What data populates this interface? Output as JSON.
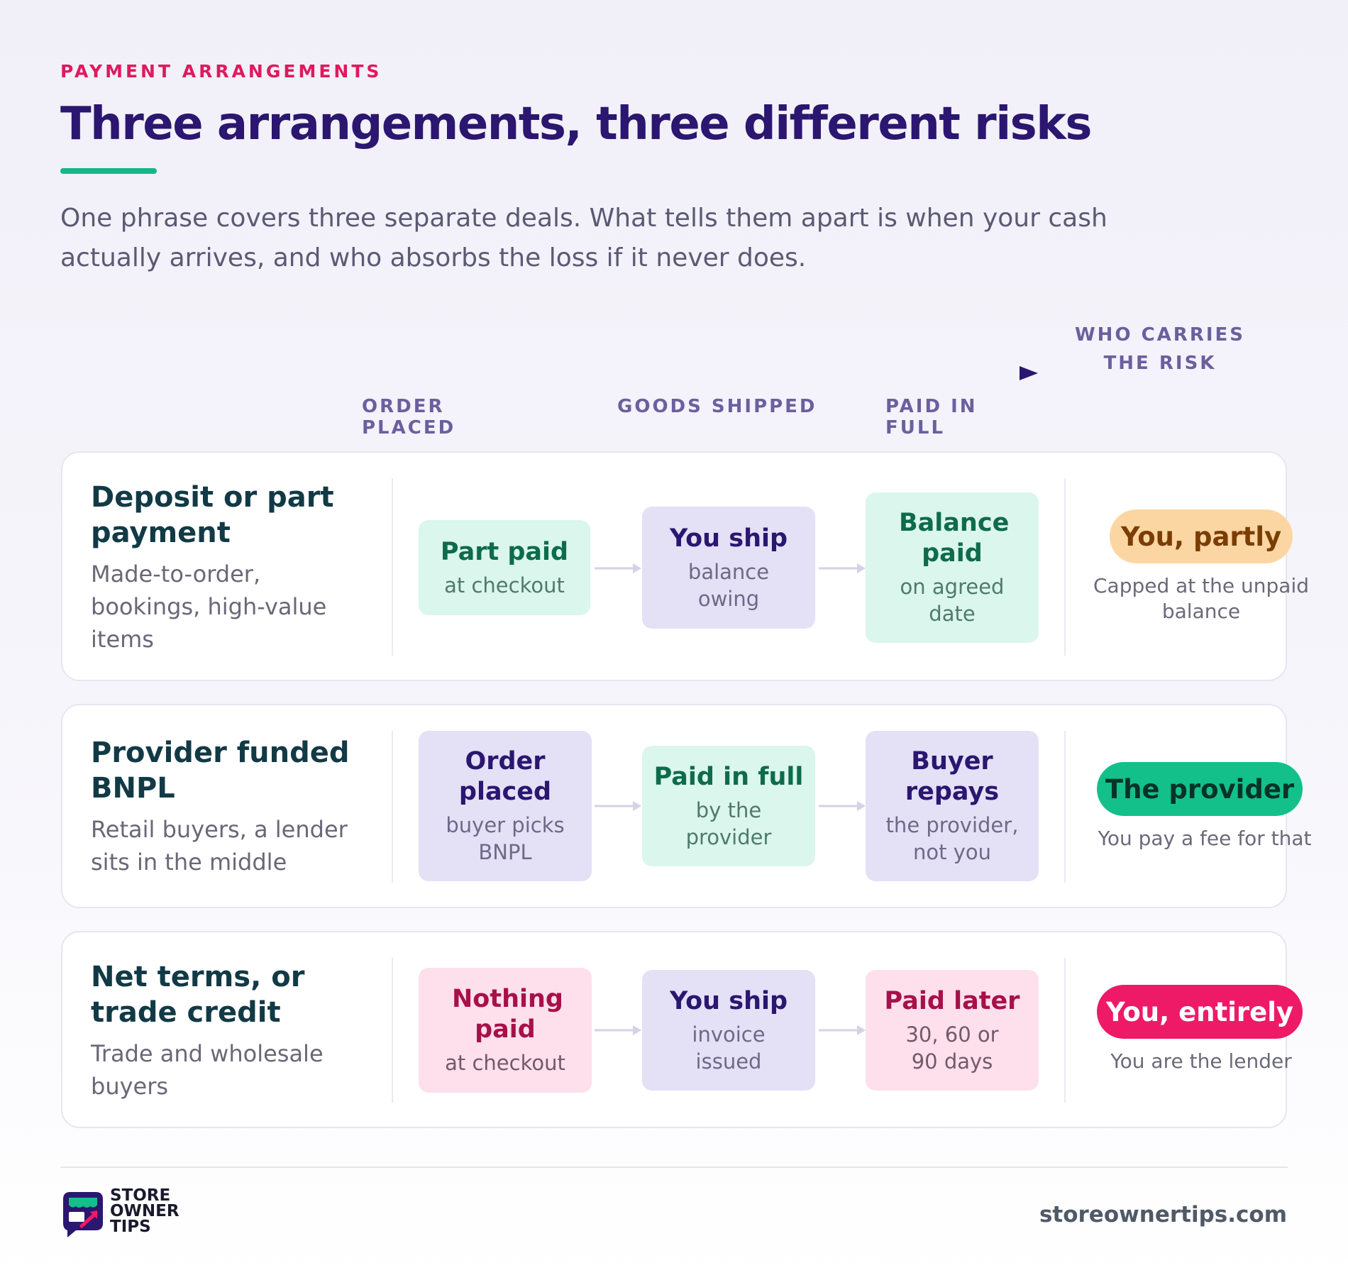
{
  "header": {
    "eyebrow": "PAYMENT ARRANGEMENTS",
    "title": "Three arrangements, three different risks",
    "lede": "One phrase covers three separate deals. What tells them apart is when your cash actually arrives, and who absorbs the loss if it never does."
  },
  "timeline": {
    "stages": [
      "ORDER PLACED",
      "GOODS SHIPPED",
      "PAID IN FULL"
    ],
    "risk_heading": "WHO CARRIES THE RISK"
  },
  "colors": {
    "accent_green": "#12b886",
    "eyebrow_pink": "#e0195d",
    "title_purple": "#2b1670",
    "risk_amber": "#fcd6a2",
    "risk_green": "#13c08a",
    "risk_pink": "#ee1a67"
  },
  "rows": [
    {
      "title": "Deposit or part payment",
      "subtitle": "Made-to-order, bookings, high-value items",
      "steps": [
        {
          "title": "Part paid",
          "sub": "at checkout",
          "tone": "green"
        },
        {
          "title": "You ship",
          "sub": "balance owing",
          "tone": "purple"
        },
        {
          "title": "Balance paid",
          "sub": "on agreed date",
          "tone": "green"
        }
      ],
      "risk": {
        "label": "You, partly",
        "note": "Capped at the unpaid balance",
        "tone": "amber"
      }
    },
    {
      "title": "Provider funded BNPL",
      "subtitle": "Retail buyers, a lender sits in the middle",
      "steps": [
        {
          "title": "Order placed",
          "sub": "buyer picks BNPL",
          "tone": "purple"
        },
        {
          "title": "Paid in full",
          "sub": "by the provider",
          "tone": "green"
        },
        {
          "title": "Buyer repays",
          "sub": "the provider, not you",
          "tone": "purple"
        }
      ],
      "risk": {
        "label": "The provider",
        "note": "You pay a fee for that",
        "tone": "green"
      }
    },
    {
      "title": "Net terms, or trade credit",
      "subtitle": "Trade and wholesale buyers",
      "steps": [
        {
          "title": "Nothing paid",
          "sub": "at checkout",
          "tone": "pink"
        },
        {
          "title": "You ship",
          "sub": "invoice issued",
          "tone": "purple"
        },
        {
          "title": "Paid later",
          "sub": "30, 60 or 90 days",
          "tone": "pink"
        }
      ],
      "risk": {
        "label": "You, entirely",
        "note": "You are the lender",
        "tone": "pink"
      }
    }
  ],
  "footer": {
    "logo_lines": [
      "STORE",
      "OWNER",
      "TIPS"
    ],
    "website": "storeownertips.com"
  }
}
